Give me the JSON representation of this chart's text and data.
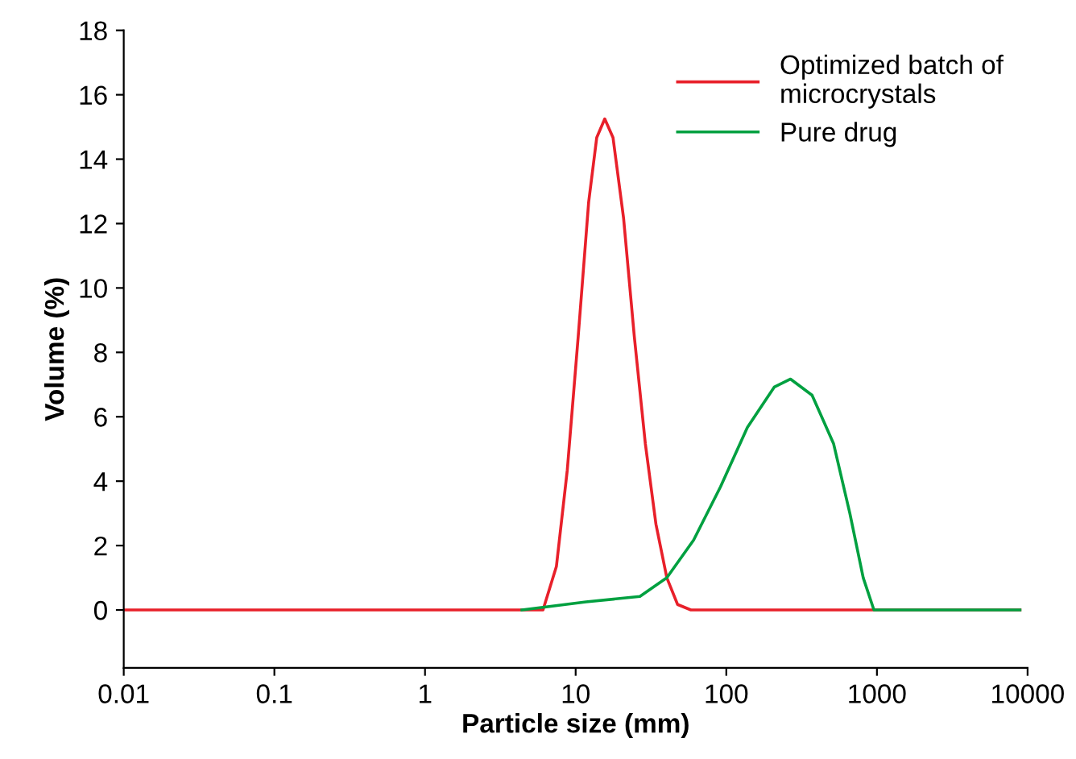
{
  "chart_data": {
    "type": "line",
    "xlabel": "Particle size (mm)",
    "ylabel": "Volume (%)",
    "log": "x",
    "xlim": [
      0.01,
      10000
    ],
    "xticks": [
      0.01,
      0.1,
      1,
      10,
      100,
      1000,
      10000
    ],
    "ylim": [
      -1.8,
      18
    ],
    "yticks": [
      0,
      2,
      4,
      6,
      8,
      10,
      12,
      14,
      16,
      18
    ],
    "grid": false,
    "legend": "top right",
    "marker": "none",
    "line_style": "solid",
    "series": [
      {
        "name": "Optimized batch of\nmicrocrystals",
        "color": "#e8202a",
        "x": [
          0.01,
          6.07,
          7.45,
          8.8,
          10.4,
          12.2,
          13.8,
          15.6,
          17.7,
          20.8,
          24.5,
          29.0,
          34.1,
          40.3,
          47.5,
          58.2,
          8900
        ],
        "values": [
          0,
          0,
          1.35,
          4.35,
          8.5,
          12.67,
          14.67,
          15.25,
          14.67,
          12.17,
          8.5,
          5.17,
          2.67,
          1.0,
          0.17,
          0,
          0
        ]
      },
      {
        "name": "Pure drug",
        "color": "#00a040",
        "x": [
          4.4,
          11.7,
          26.7,
          40.3,
          60.7,
          91.6,
          138,
          208,
          267,
          371,
          515,
          661,
          811,
          955,
          8900
        ],
        "values": [
          0,
          0.25,
          0.42,
          1.0,
          2.17,
          3.83,
          5.67,
          6.92,
          7.17,
          6.67,
          5.17,
          3.0,
          1.0,
          0,
          0
        ]
      }
    ]
  }
}
